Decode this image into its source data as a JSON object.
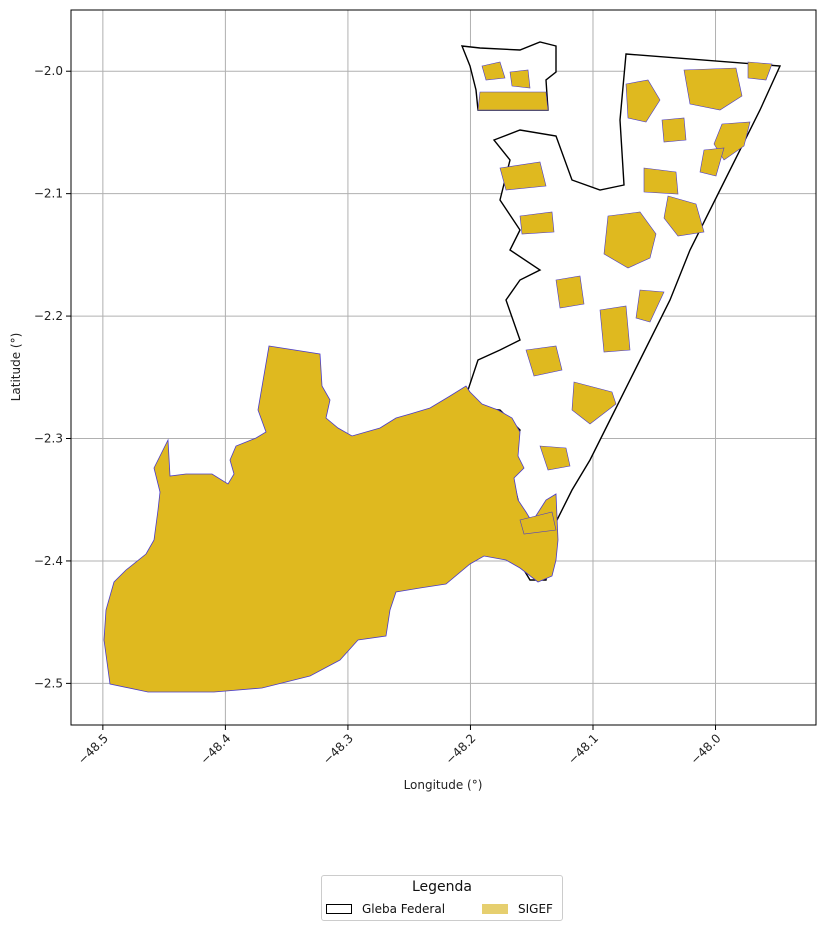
{
  "chart_data": {
    "type": "map",
    "xlabel": "Longitude (°)",
    "ylabel": "Latitude (°)",
    "xlim": [
      -48.526,
      -47.918
    ],
    "ylim": [
      -2.534,
      -1.95
    ],
    "x_ticks": [
      "−48.5",
      "−48.4",
      "−48.3",
      "−48.2",
      "−48.1",
      "−48.0"
    ],
    "y_ticks": [
      "−2.0",
      "−2.1",
      "−2.2",
      "−2.3",
      "−2.4",
      "−2.5"
    ],
    "grid": true,
    "legend": {
      "title": "Legenda",
      "placement": "bottom-center",
      "entries": [
        {
          "label": "Gleba Federal",
          "color": "#ffffff",
          "edge": "#000000"
        },
        {
          "label": "SIGEF",
          "color": "#e6cf6f",
          "edge": "#e6cf6f"
        }
      ]
    },
    "layers": [
      {
        "name": "Gleba Federal",
        "fill": "#ffffff",
        "edge": "#000000"
      },
      {
        "name": "SIGEF",
        "fill": "#dfb91f",
        "edge": "#4b3cc8"
      }
    ]
  }
}
